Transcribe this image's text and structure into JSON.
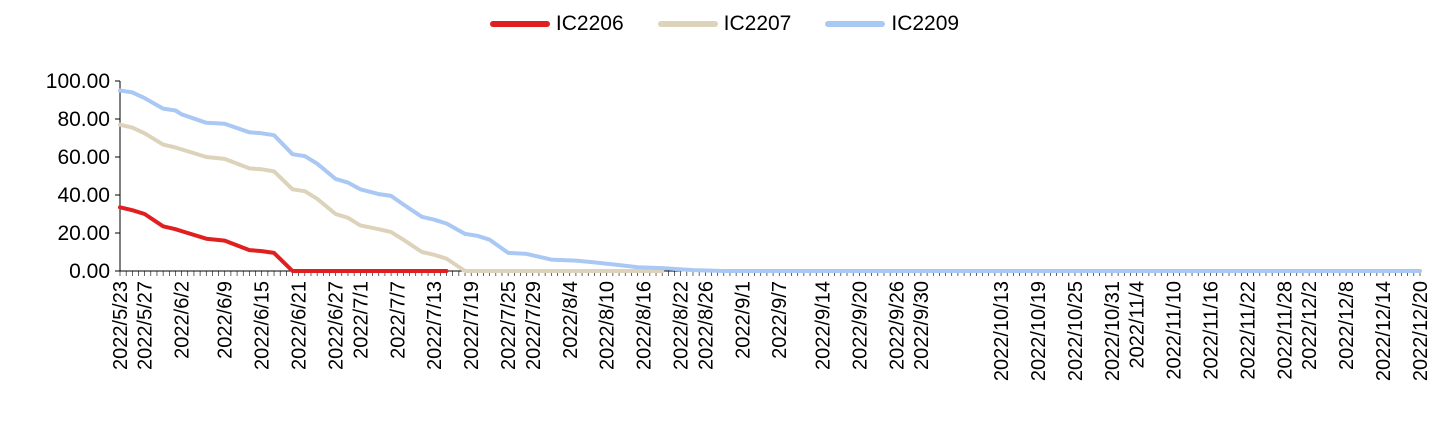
{
  "chart_data": {
    "type": "line",
    "title": "",
    "xlabel": "",
    "ylabel": "",
    "ylim": [
      0,
      100
    ],
    "yticks": [
      "0.00",
      "20.00",
      "40.00",
      "60.00",
      "80.00",
      "100.00"
    ],
    "x_tick_labels": [
      "2022/5/23",
      "2022/5/27",
      "2022/6/2",
      "2022/6/9",
      "2022/6/15",
      "2022/6/21",
      "2022/6/27",
      "2022/7/1",
      "2022/7/7",
      "2022/7/13",
      "2022/7/19",
      "2022/7/25",
      "2022/7/29",
      "2022/8/4",
      "2022/8/10",
      "2022/8/16",
      "2022/8/22",
      "2022/8/26",
      "2022/9/1",
      "2022/9/7",
      "2022/9/14",
      "2022/9/20",
      "2022/9/26",
      "2022/9/30",
      "2022/10/13",
      "2022/10/19",
      "2022/10/25",
      "2022/10/31",
      "2022/11/4",
      "2022/11/10",
      "2022/11/16",
      "2022/11/22",
      "2022/11/28",
      "2022/12/2",
      "2022/12/8",
      "2022/12/14",
      "2022/12/20"
    ],
    "x_start": "2022/5/23",
    "x_end": "2022/12/20",
    "legend_position": "top",
    "grid": false,
    "series": [
      {
        "name": "IC2206",
        "color": "#e02020",
        "points": [
          [
            "2022/5/23",
            33.5
          ],
          [
            "2022/5/25",
            32.0
          ],
          [
            "2022/5/27",
            30.0
          ],
          [
            "2022/5/30",
            23.5
          ],
          [
            "2022/6/1",
            22.0
          ],
          [
            "2022/6/2",
            21.0
          ],
          [
            "2022/6/6",
            17.0
          ],
          [
            "2022/6/9",
            16.0
          ],
          [
            "2022/6/13",
            11.0
          ],
          [
            "2022/6/15",
            10.5
          ],
          [
            "2022/6/17",
            9.5
          ],
          [
            "2022/6/20",
            0
          ],
          [
            "2022/7/15",
            0
          ]
        ]
      },
      {
        "name": "IC2207",
        "color": "#ddd3bb",
        "points": [
          [
            "2022/5/23",
            77.0
          ],
          [
            "2022/5/25",
            75.5
          ],
          [
            "2022/5/27",
            72.5
          ],
          [
            "2022/5/30",
            66.5
          ],
          [
            "2022/6/1",
            65.0
          ],
          [
            "2022/6/2",
            64.0
          ],
          [
            "2022/6/6",
            60.0
          ],
          [
            "2022/6/9",
            59.0
          ],
          [
            "2022/6/13",
            54.0
          ],
          [
            "2022/6/15",
            53.5
          ],
          [
            "2022/6/17",
            52.5
          ],
          [
            "2022/6/20",
            43.0
          ],
          [
            "2022/6/22",
            42.0
          ],
          [
            "2022/6/24",
            38.0
          ],
          [
            "2022/6/27",
            30.0
          ],
          [
            "2022/6/29",
            28.0
          ],
          [
            "2022/7/1",
            24.0
          ],
          [
            "2022/7/4",
            22.0
          ],
          [
            "2022/7/6",
            20.5
          ],
          [
            "2022/7/8",
            16.5
          ],
          [
            "2022/7/11",
            10.0
          ],
          [
            "2022/7/13",
            8.5
          ],
          [
            "2022/7/15",
            6.5
          ],
          [
            "2022/7/18",
            0
          ],
          [
            "2022/8/19",
            0
          ]
        ]
      },
      {
        "name": "IC2209",
        "color": "#a9c8f4",
        "points": [
          [
            "2022/5/23",
            95.0
          ],
          [
            "2022/5/25",
            94.0
          ],
          [
            "2022/5/27",
            91.0
          ],
          [
            "2022/5/30",
            85.5
          ],
          [
            "2022/6/1",
            84.5
          ],
          [
            "2022/6/2",
            82.5
          ],
          [
            "2022/6/6",
            78.0
          ],
          [
            "2022/6/9",
            77.5
          ],
          [
            "2022/6/13",
            73.0
          ],
          [
            "2022/6/15",
            72.5
          ],
          [
            "2022/6/17",
            71.5
          ],
          [
            "2022/6/20",
            61.5
          ],
          [
            "2022/6/22",
            60.5
          ],
          [
            "2022/6/24",
            56.5
          ],
          [
            "2022/6/27",
            48.5
          ],
          [
            "2022/6/29",
            46.5
          ],
          [
            "2022/7/1",
            43.0
          ],
          [
            "2022/7/4",
            40.5
          ],
          [
            "2022/7/6",
            39.5
          ],
          [
            "2022/7/8",
            35.0
          ],
          [
            "2022/7/11",
            28.5
          ],
          [
            "2022/7/13",
            27.0
          ],
          [
            "2022/7/15",
            25.0
          ],
          [
            "2022/7/18",
            19.5
          ],
          [
            "2022/7/20",
            18.5
          ],
          [
            "2022/7/22",
            16.5
          ],
          [
            "2022/7/25",
            9.5
          ],
          [
            "2022/7/28",
            9.0
          ],
          [
            "2022/8/1",
            6.0
          ],
          [
            "2022/8/5",
            5.5
          ],
          [
            "2022/8/8",
            4.5
          ],
          [
            "2022/8/11",
            3.5
          ],
          [
            "2022/8/15",
            2.0
          ],
          [
            "2022/8/19",
            1.5
          ],
          [
            "2022/8/24",
            0.5
          ],
          [
            "2022/8/29",
            0
          ],
          [
            "2022/12/20",
            0
          ]
        ]
      }
    ]
  }
}
